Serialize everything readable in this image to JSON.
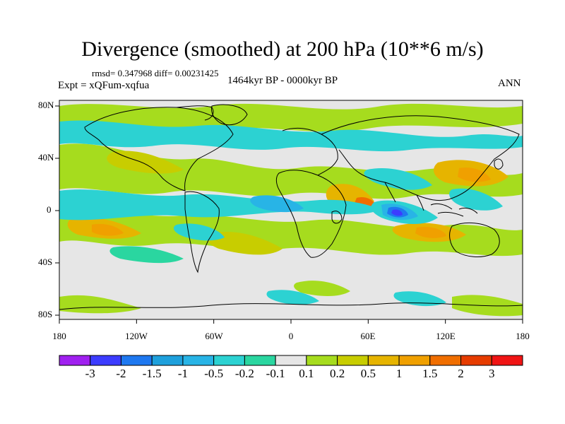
{
  "title": "Divergence (smoothed) at 200 hPa (10**6 m/s)",
  "stats_line": "rmsd= 0.347968  diff= 0.00231425",
  "experiment_label": "Expt = xQFum-xqfua",
  "period_label": "1464kyr BP - 0000kyr BP",
  "season_label": "ANN",
  "lat_ticks": [
    "80N",
    "40N",
    "0",
    "40S",
    "80S"
  ],
  "lon_ticks": [
    "180",
    "120W",
    "60W",
    "0",
    "60E",
    "120E",
    "180"
  ],
  "colorbar": {
    "labels": [
      "-3",
      "-2",
      "-1.5",
      "-1",
      "-0.5",
      "-0.2",
      "-0.1",
      "0.1",
      "0.2",
      "0.5",
      "1",
      "1.5",
      "2",
      "3"
    ],
    "colors": [
      "#a020f0",
      "#3c3cff",
      "#1e78f0",
      "#1ea0dc",
      "#28b4e6",
      "#2cd2d2",
      "#2ad6a0",
      "#e6e6e6",
      "#a6dc1e",
      "#c8cd00",
      "#e6b400",
      "#f0a000",
      "#f06e00",
      "#e63c00",
      "#f01414"
    ]
  },
  "map_colors": {
    "ocean_background": "#e6e6e6",
    "coastline": "#000000"
  }
}
